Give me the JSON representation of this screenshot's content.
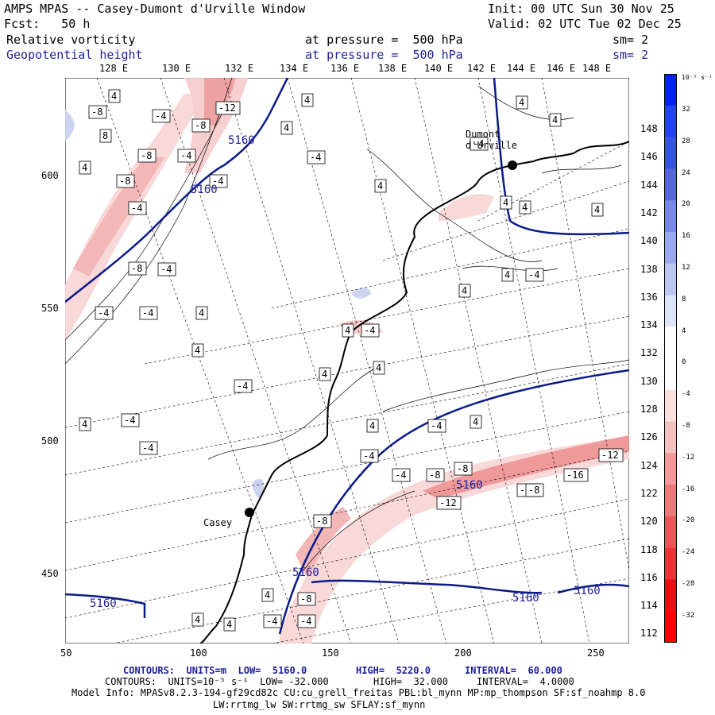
{
  "header": {
    "title": "AMPS MPAS -- Casey-Dumont d'Urville Window",
    "init": "Init: 00 UTC Sun 30 Nov 25",
    "fcst": "Fcst:   50 h",
    "valid": "Valid: 02 UTC Tue 02 Dec 25",
    "field1_name": "Relative vorticity",
    "field1_level": "at pressure =  500 hPa",
    "field1_sm": "sm= 2",
    "field2_name": "Geopotential height",
    "field2_level": "at pressure =  500 hPa",
    "field2_sm": "sm= 2"
  },
  "top_lon_labels": [
    "128 E",
    "130 E",
    "132 E",
    "134 E",
    "136 E",
    "138 E",
    "140 E",
    "142 E",
    "144 E",
    "146 E",
    "148 E"
  ],
  "right_lon_labels": [
    "148 E",
    "146 E",
    "144 E",
    "142 E",
    "140 E",
    "138 E",
    "136 E",
    "134 E",
    "132 E",
    "130 E",
    "128 E",
    "126 E",
    "124 E",
    "122 E",
    "120 E",
    "118 E",
    "116 E",
    "114 E",
    "112 E"
  ],
  "y_axis_labels": [
    "600",
    "550",
    "500",
    "450"
  ],
  "x_axis_labels": [
    "50",
    "100",
    "150",
    "200",
    "250"
  ],
  "colorbar": {
    "unit_label": "10⁻⁵ s⁻¹",
    "ticks": [
      "32",
      "28",
      "24",
      "20",
      "16",
      "12",
      "8",
      "4",
      "0",
      "-4",
      "-8",
      "-12",
      "-16",
      "-20",
      "-24",
      "-28",
      "-32"
    ],
    "colors": [
      "#0022ee",
      "#2244ee",
      "#3355dd",
      "#5566dd",
      "#7788e6",
      "#99aaee",
      "#bbc6f2",
      "#dde3f8",
      "#ffffff",
      "#ffffff",
      "#fbe0e0",
      "#f5c0c0",
      "#f29a9a",
      "#ee7777",
      "#ec5555",
      "#ea3333",
      "#e81111",
      "#ff0000"
    ]
  },
  "stations": [
    {
      "name": "Dumont\nd'Urville"
    },
    {
      "name": "Casey"
    }
  ],
  "height_labels": [
    "5160",
    "5160",
    "5160",
    "5160",
    "5160",
    "5160",
    "5160"
  ],
  "footer": {
    "line1_a": "CONTOURS:  UNITS=m  LOW=  5160.0",
    "line1_b": "HIGH=  5220.0",
    "line1_c": "INTERVAL=  60.000",
    "line2_a": "CONTOURS:  UNITS=10⁻⁵ s⁻¹  LOW= -32.000",
    "line2_b": "HIGH=  32.000",
    "line2_c": "INTERVAL=  4.0000",
    "line3": "Model Info: MPASv8.2.3-194-gf29cd82c CU:cu_grell_freitas PBL:bl_mynn MP:mp_thompson SF:sf_noahmp 8.0",
    "line4": "LW:rrtmg_lw SW:rrtmg_sw SFLAY:sf_mynn"
  }
}
